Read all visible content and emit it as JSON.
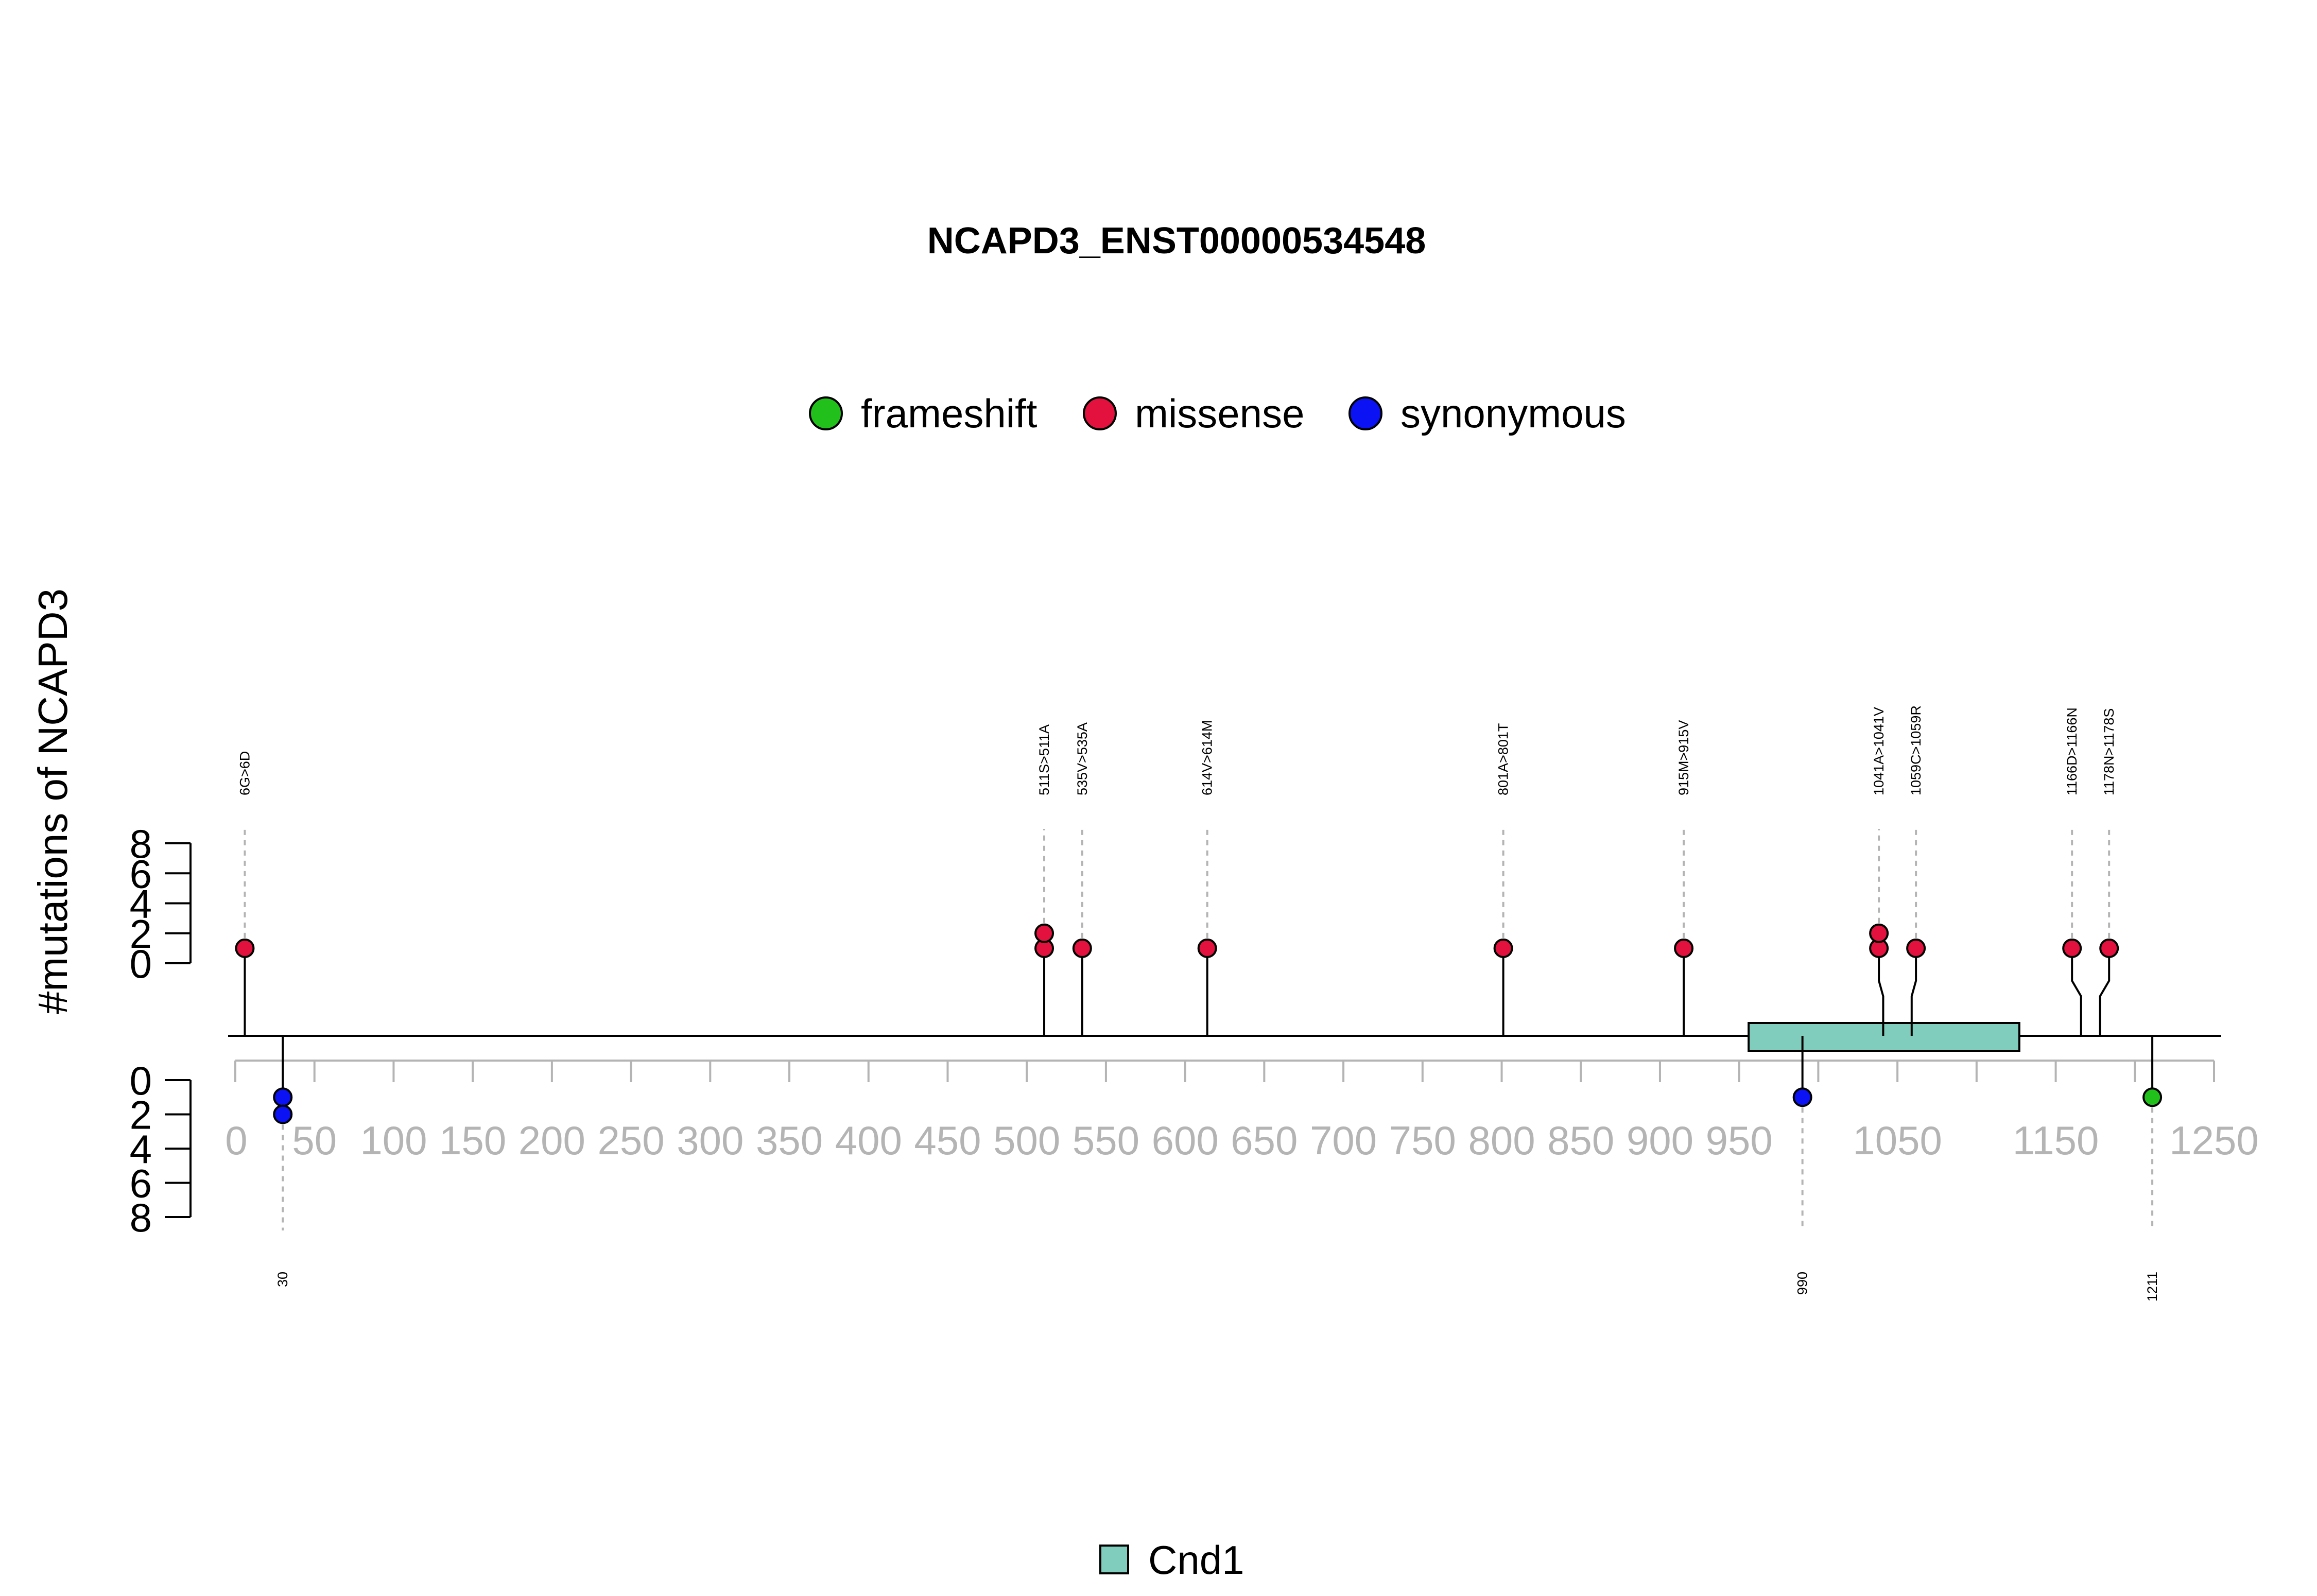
{
  "chart_data": {
    "type": "lollipop",
    "title": "NCAPD3_ENST00000534548",
    "ylabel": "#mutations of NCAPD3",
    "protein_length": 1250,
    "xlim": [
      0,
      1250
    ],
    "x_ticks": [
      0,
      50,
      100,
      150,
      200,
      250,
      300,
      350,
      400,
      450,
      500,
      550,
      600,
      650,
      700,
      750,
      800,
      850,
      900,
      950,
      1050,
      1150,
      1250
    ],
    "y_ticks_upper": [
      "0",
      "2",
      "4",
      "6",
      "8"
    ],
    "y_ticks_lower": [
      "0",
      "2",
      "4",
      "6",
      "8"
    ],
    "ylim": [
      0,
      8
    ],
    "legend": [
      {
        "label": "frameshift",
        "color": "#22c01b"
      },
      {
        "label": "missense",
        "color": "#e2113e"
      },
      {
        "label": "synonymous",
        "color": "#0b13f5"
      }
    ],
    "domains": [
      {
        "name": "Cnd1",
        "start": 956,
        "end": 1127,
        "color": "#80cdbd"
      }
    ],
    "upper_mutations": [
      {
        "label": "6G>6D",
        "position": 6,
        "count": 1,
        "type": "missense"
      },
      {
        "label": "511S>511A",
        "position": 511,
        "count": 2,
        "type": "missense"
      },
      {
        "label": "535V>535A",
        "position": 535,
        "count": 1,
        "type": "missense"
      },
      {
        "label": "614V>614M",
        "position": 614,
        "count": 1,
        "type": "missense"
      },
      {
        "label": "801A>801T",
        "position": 801,
        "count": 1,
        "type": "missense"
      },
      {
        "label": "915M>915V",
        "position": 915,
        "count": 1,
        "type": "missense"
      },
      {
        "label": "1041A>1041V",
        "position": 1041,
        "count": 2,
        "type": "missense"
      },
      {
        "label": "1059C>1059R",
        "position": 1059,
        "count": 1,
        "type": "missense"
      },
      {
        "label": "1166D>1166N",
        "position": 1166,
        "count": 1,
        "type": "missense"
      },
      {
        "label": "1178N>1178S",
        "position": 1178,
        "count": 1,
        "type": "missense"
      }
    ],
    "lower_mutations": [
      {
        "label": "30",
        "position": 30,
        "count": 2,
        "type": "synonymous"
      },
      {
        "label": "990",
        "position": 990,
        "count": 1,
        "type": "synonymous"
      },
      {
        "label": "1211",
        "position": 1211,
        "count": 1,
        "type": "frameshift"
      }
    ]
  }
}
